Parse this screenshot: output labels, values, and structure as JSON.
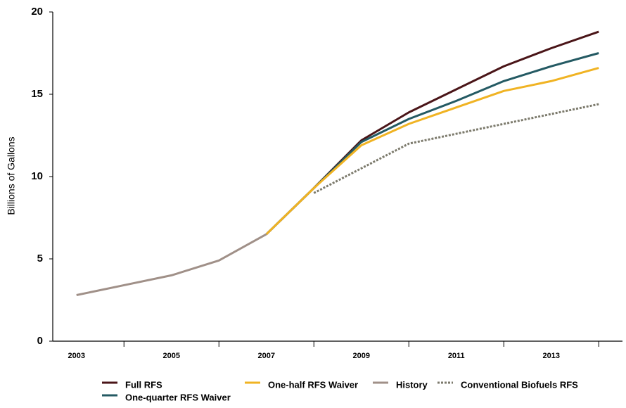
{
  "chart_data": {
    "type": "line",
    "y_label": "Billions of Gallons",
    "categories": [
      2003,
      null,
      2005,
      null,
      2007,
      null,
      2009,
      null,
      2011,
      null,
      2013,
      null
    ],
    "ylim": [
      0,
      20
    ],
    "yticks": [
      0,
      5,
      10,
      15,
      20
    ],
    "series": [
      {
        "name": "Full RFS",
        "color": "#4a1518",
        "values": [
          null,
          null,
          null,
          null,
          6.5,
          9.3,
          12.2,
          13.9,
          15.3,
          16.7,
          17.8,
          18.8
        ]
      },
      {
        "name": "One-quarter RFS Waiver",
        "color": "#245a63",
        "values": [
          null,
          null,
          null,
          null,
          6.5,
          9.3,
          12.1,
          13.5,
          14.6,
          15.8,
          16.7,
          17.5
        ]
      },
      {
        "name": "One-half RFS Waiver",
        "color": "#f0b323",
        "values": [
          null,
          null,
          null,
          null,
          6.5,
          9.3,
          11.9,
          13.2,
          14.2,
          15.2,
          15.8,
          16.6
        ]
      },
      {
        "name": "History",
        "color": "#a09088",
        "values": [
          2.8,
          3.4,
          4.0,
          4.9,
          6.5,
          null,
          null,
          null,
          null,
          null,
          null,
          null
        ]
      },
      {
        "name": "Conventional Biofuels RFS",
        "color": "#7c7a6c",
        "dashed": true,
        "values": [
          null,
          null,
          null,
          null,
          null,
          9.0,
          10.5,
          12.0,
          12.6,
          13.2,
          13.8,
          14.4
        ]
      }
    ]
  }
}
